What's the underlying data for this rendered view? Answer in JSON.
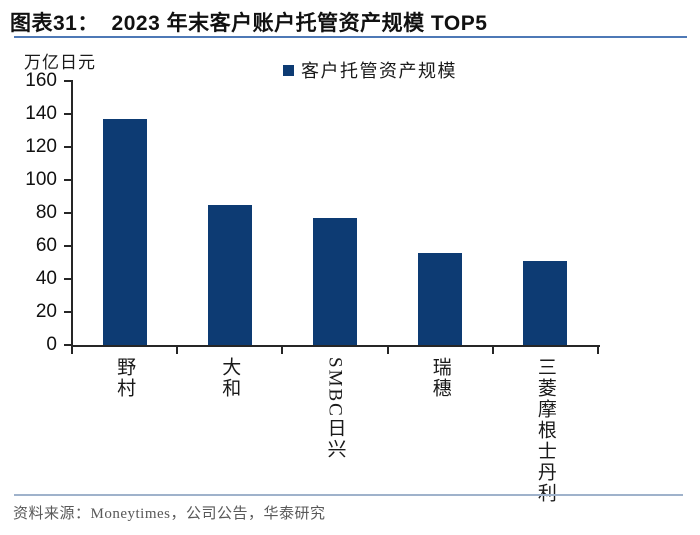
{
  "header": {
    "title": "图表31：  2023 年末客户账户托管资产规模 TOP5"
  },
  "chart_data": {
    "type": "bar",
    "title": "2023 年末客户账户托管资产规模 TOP5",
    "ylabel": "万亿日元",
    "legend": {
      "label": "客户托管资产规模",
      "position": "top-center",
      "marker": "square"
    },
    "categories": [
      "野村",
      "大和",
      "SMBC日兴",
      "瑞穗",
      "三菱摩根士丹利"
    ],
    "values": [
      137,
      85,
      77,
      56,
      51
    ],
    "ylim": [
      0,
      160
    ],
    "yticks": [
      0,
      20,
      40,
      60,
      80,
      100,
      120,
      140,
      160
    ],
    "grid": false,
    "bar_color": "#0D3B73"
  },
  "footer": {
    "source": "资料来源：Moneytimes，公司公告，华泰研究"
  },
  "colors": {
    "bar": "#0D3B73",
    "title_rule": "#4E79B6",
    "footer_rule": "#9FB2CB",
    "axis": "#262626",
    "source_text": "#595959"
  }
}
